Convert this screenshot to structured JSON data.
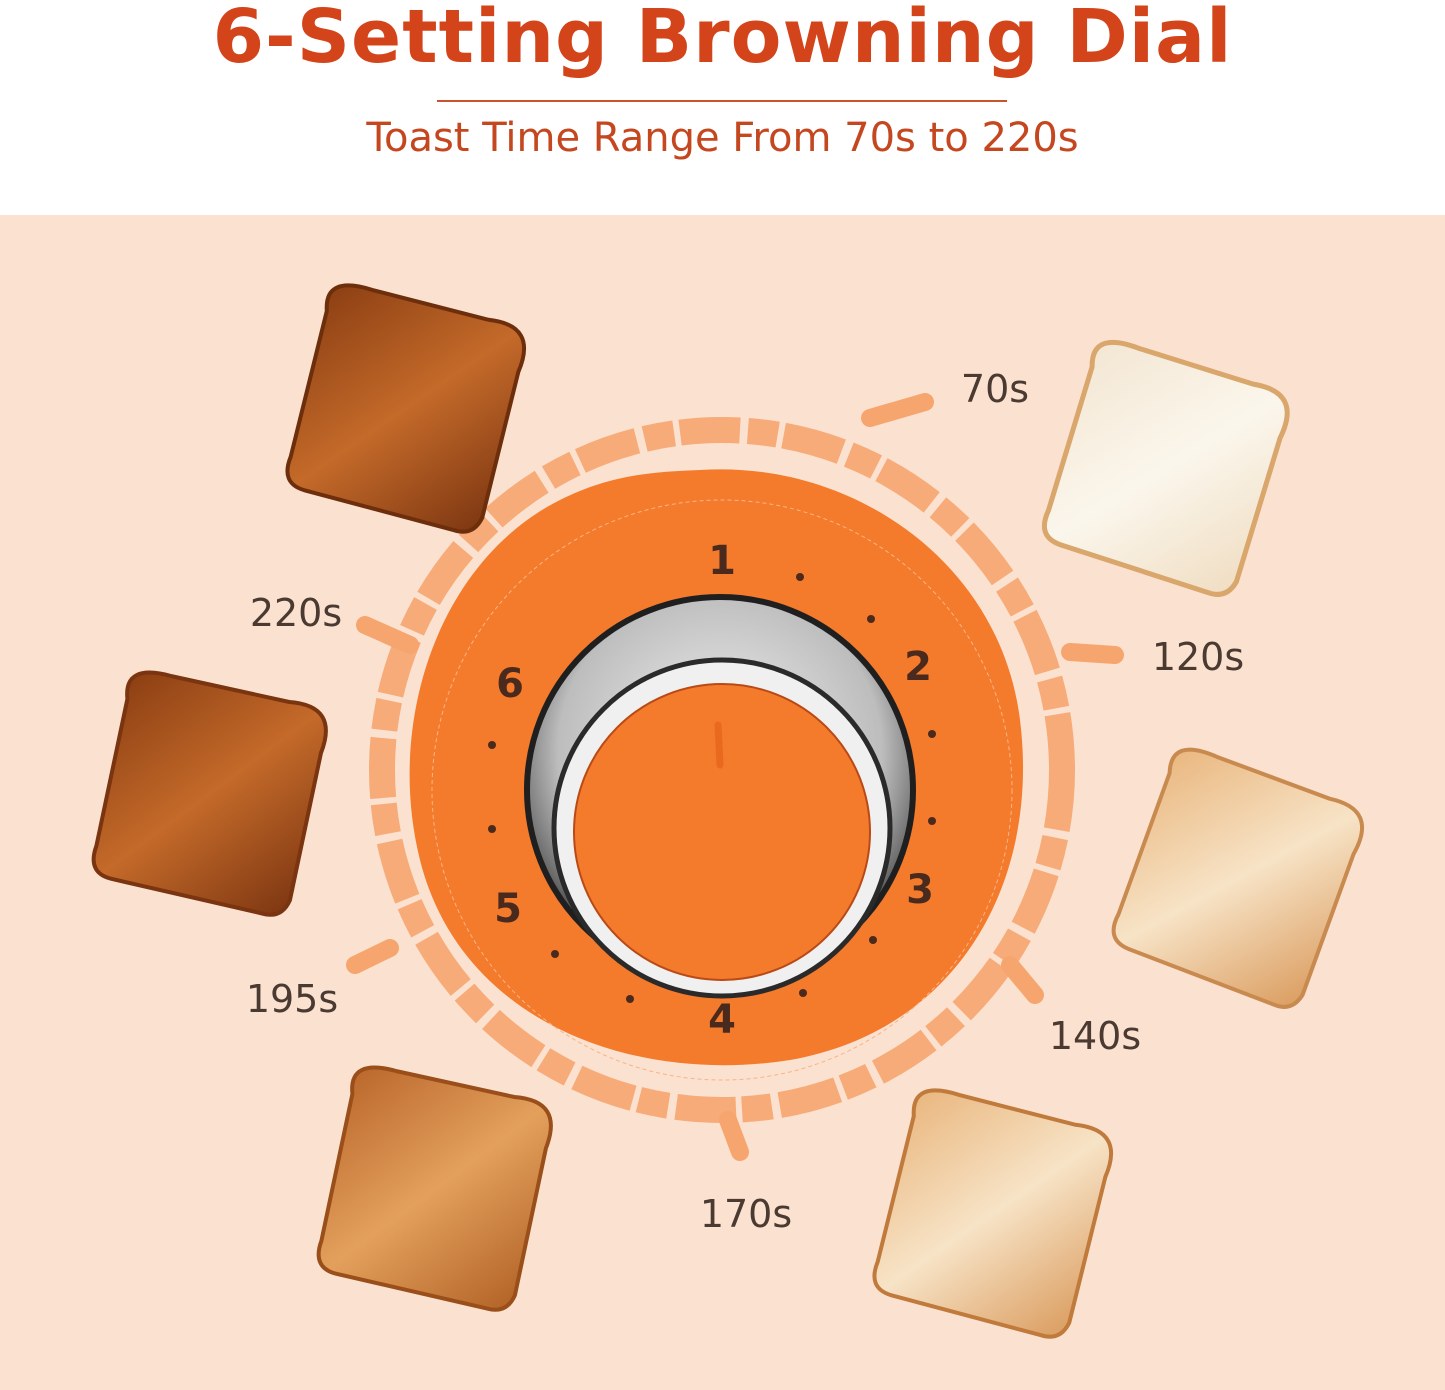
{
  "header": {
    "title": "6-Setting Browning Dial",
    "subtitle": "Toast Time Range From 70s to 220s"
  },
  "dial": {
    "settings": [
      "1",
      "2",
      "3",
      "4",
      "5",
      "6"
    ],
    "time_labels": [
      "70s",
      "120s",
      "140s",
      "170s",
      "195s",
      "220s"
    ]
  },
  "colors": {
    "title": "#d4441a",
    "background": "#fbe1cf",
    "dial_orange": "#f47a2c",
    "ring_orange": "#f6a56e"
  }
}
